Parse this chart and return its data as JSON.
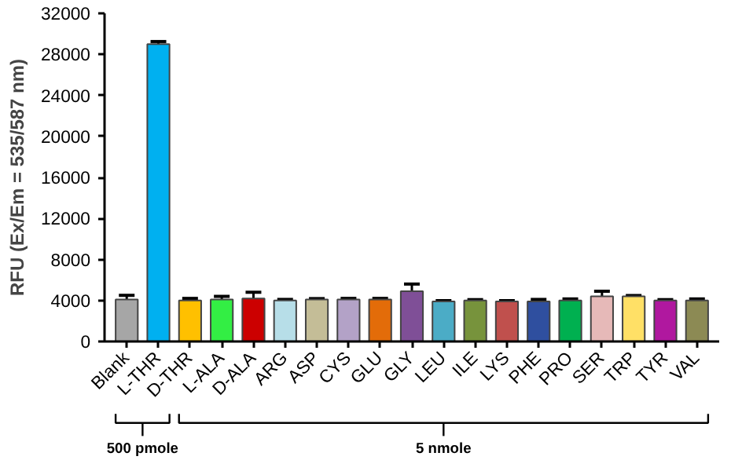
{
  "chart_data": {
    "type": "bar",
    "ylabel": "RFU (Ex/Em = 535/587 nm)",
    "categories": [
      "Blank",
      "L-THR",
      "D-THR",
      "L-ALA",
      "D-ALA",
      "ARG",
      "ASP",
      "CYS",
      "GLU",
      "GLY",
      "LEU",
      "ILE",
      "LYS",
      "PHE",
      "PRO",
      "SER",
      "TRP",
      "TYR",
      "VAL"
    ],
    "values": [
      4100,
      29000,
      4000,
      4100,
      4200,
      4000,
      4100,
      4100,
      4100,
      4900,
      3900,
      4000,
      3900,
      3900,
      4000,
      4400,
      4400,
      4000,
      4000
    ],
    "errors": [
      400,
      250,
      200,
      300,
      600,
      100,
      80,
      100,
      100,
      700,
      80,
      80,
      80,
      200,
      150,
      500,
      80,
      80,
      150
    ],
    "colors": [
      "#a6a6a6",
      "#00b0f0",
      "#ffc000",
      "#33ee44",
      "#cc0000",
      "#b7dee8",
      "#c4bd97",
      "#b3a2c7",
      "#e36c09",
      "#7f4f97",
      "#4bacc6",
      "#77933c",
      "#c0504d",
      "#2f4f9f",
      "#00b050",
      "#e6b9b8",
      "#ffe066",
      "#b0189f",
      "#8c8a54"
    ],
    "ylim": [
      0,
      32000
    ],
    "yticks": [
      0,
      4000,
      8000,
      12000,
      16000,
      20000,
      24000,
      28000,
      32000
    ],
    "annotations": [
      "500 pmole",
      "5 nmole"
    ],
    "grid": false
  }
}
